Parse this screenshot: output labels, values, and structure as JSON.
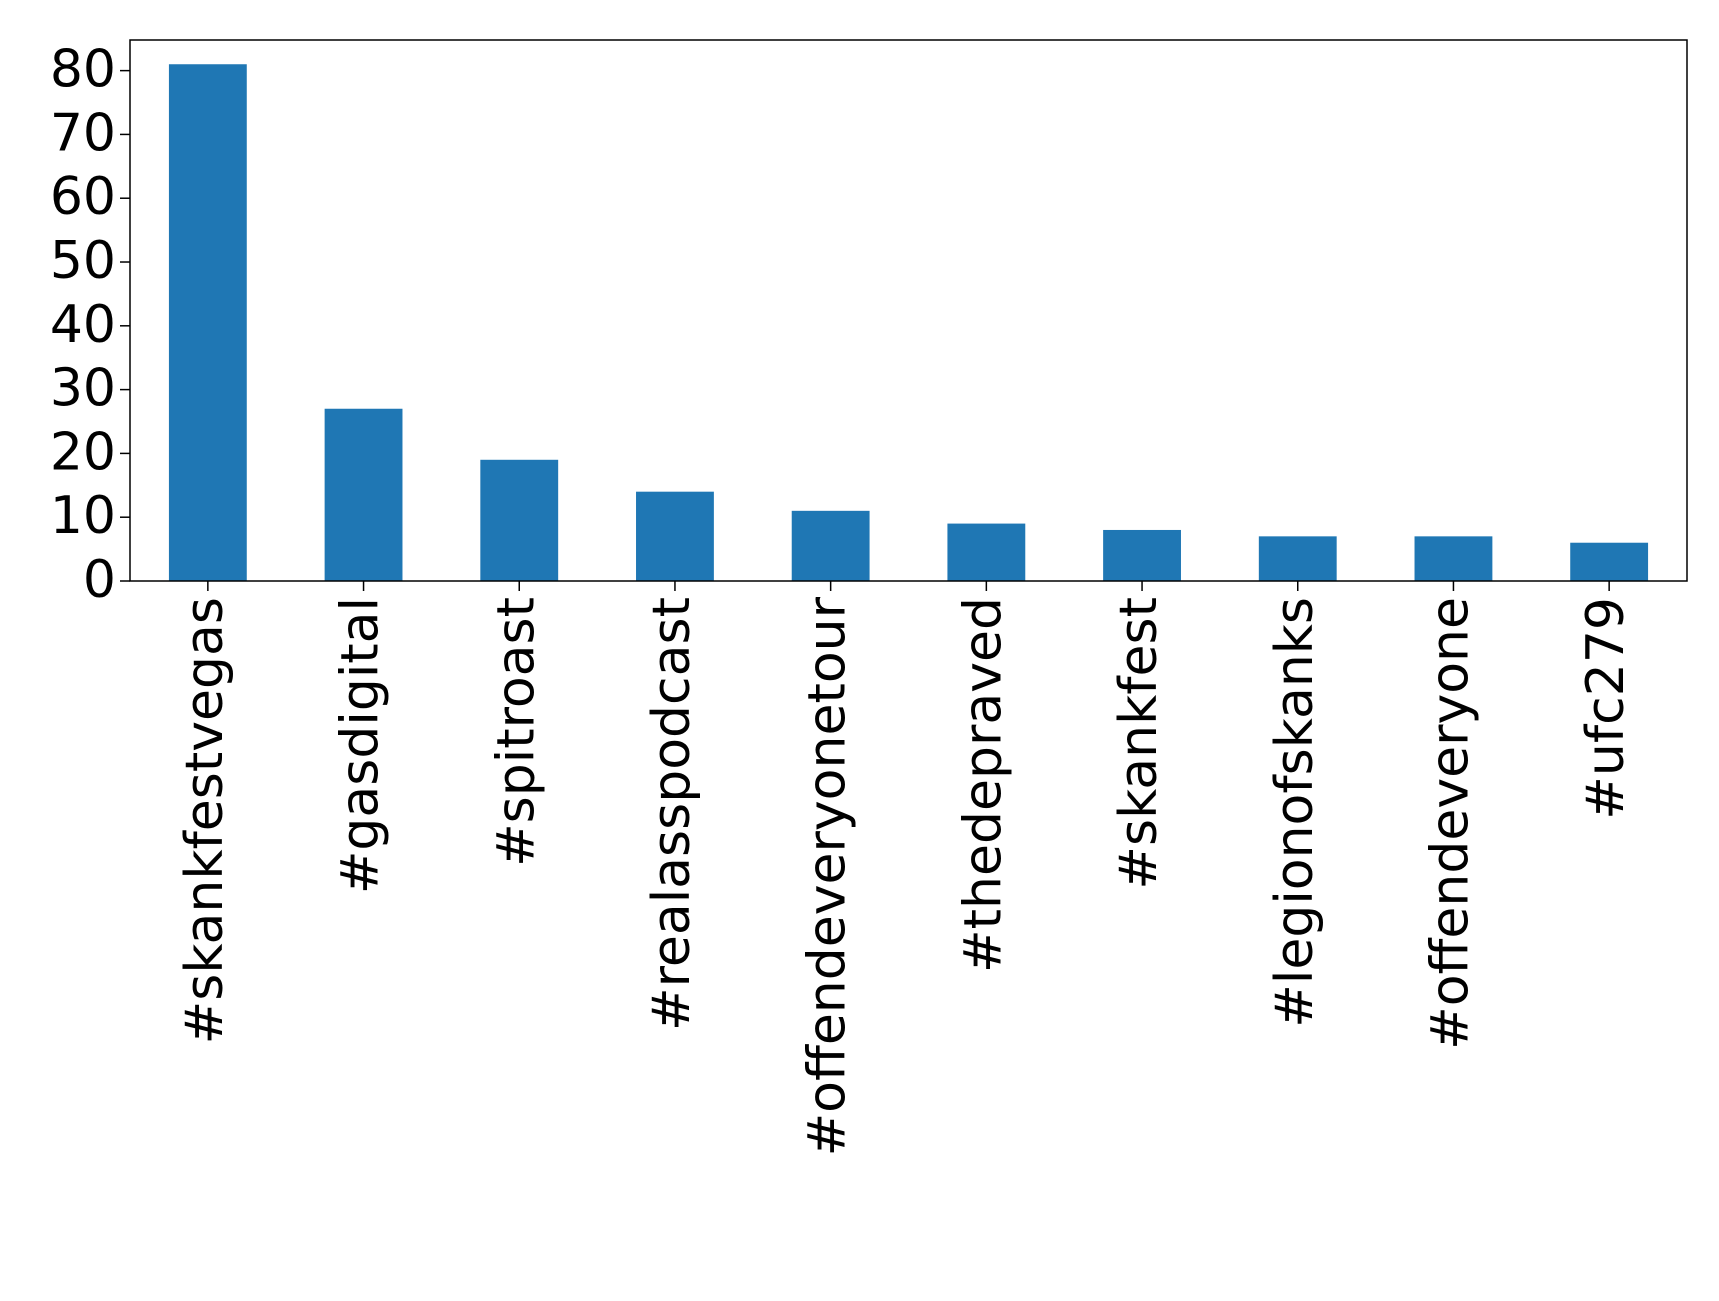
{
  "chart_data": {
    "type": "bar",
    "categories": [
      "#skankfestvegas",
      "#gasdigital",
      "#spitroast",
      "#realasspodcast",
      "#offendeveryonetour",
      "#thedepraved",
      "#skankfest",
      "#legionofskanks",
      "#offendeveryone",
      "#ufc279"
    ],
    "values": [
      81,
      27,
      19,
      14,
      11,
      9,
      8,
      7,
      7,
      6
    ],
    "color": "#1f77b4",
    "ylim": [
      0,
      84.8
    ],
    "yticks": [
      0,
      10,
      20,
      30,
      40,
      50,
      60,
      70,
      80
    ],
    "grid": false
  }
}
